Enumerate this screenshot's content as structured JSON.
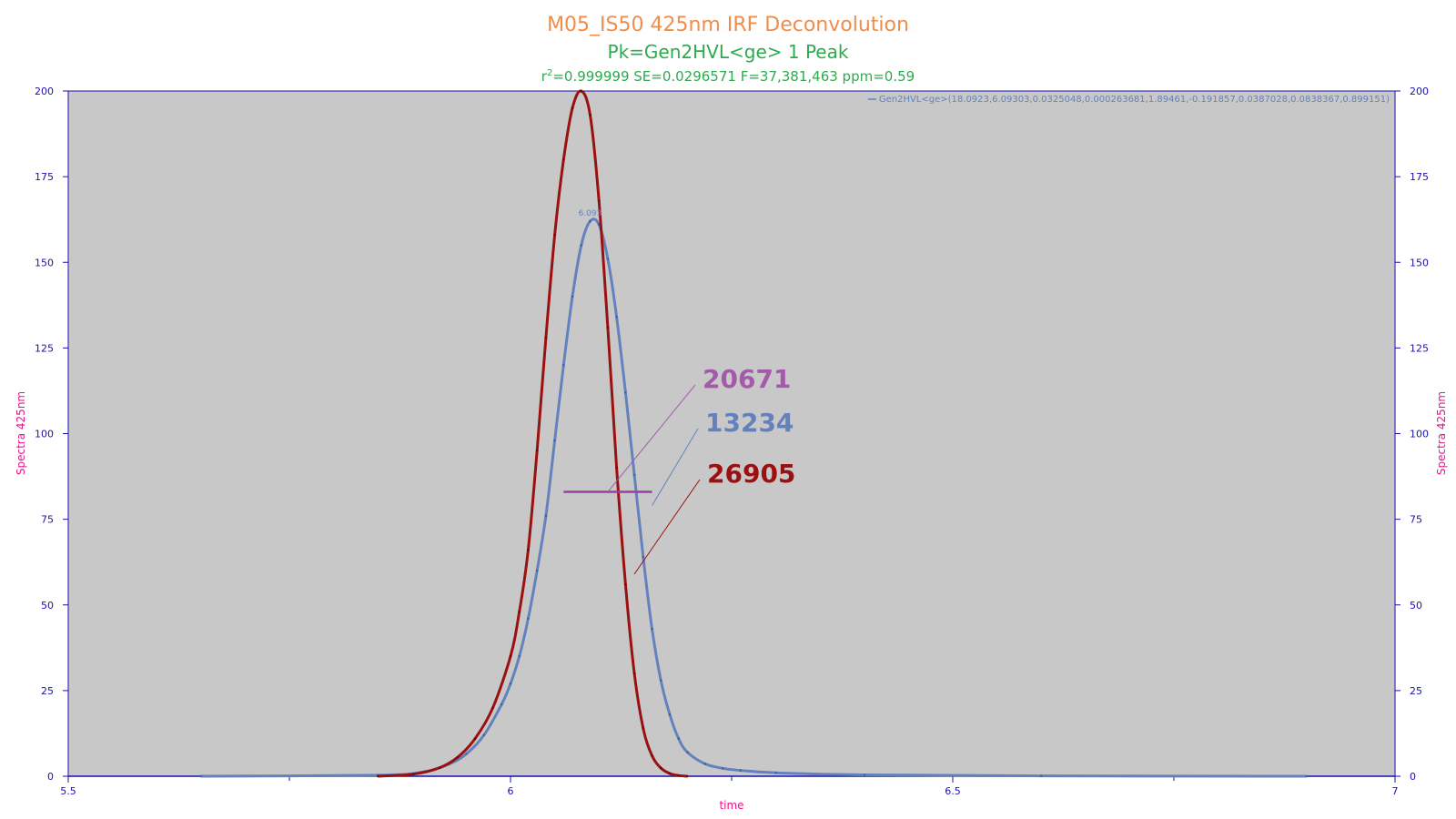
{
  "chart_data": {
    "type": "line",
    "title": "M05_IS50 425nm IRF Deconvolution",
    "subtitle": "Pk=Gen2HVL<ge>  1 Peak",
    "stats": {
      "r2_prefix": "r",
      "r2_sup": "2",
      "r2_rest": "=0.999999  SE=0.0296571  F=37,381,463  ppm=0.59"
    },
    "xlabel": "time",
    "ylabel": "Spectra 425nm",
    "ylabel_right": "Spectra 425nm",
    "xlim": [
      5.5,
      7
    ],
    "ylim": [
      0,
      200
    ],
    "x_ticks": [
      5.5,
      6,
      6.5,
      7
    ],
    "x_tick_labels": [
      "5.5",
      "6",
      "6.5",
      "7"
    ],
    "y_ticks": [
      0,
      25,
      50,
      75,
      100,
      125,
      150,
      175,
      200
    ],
    "y_tick_labels": [
      "0",
      "25",
      "50",
      "75",
      "100",
      "125",
      "150",
      "175",
      "200"
    ],
    "legend": {
      "position": "top-right",
      "entry": "Gen2HVL<ge>(18.0923,6.09303,0.0325048,0.000263681,1.89461,-0.191857,0.0387028,0.0838367,0.899151)"
    },
    "peak_label": "6.093",
    "series": [
      {
        "name": "Gen2HVL<ge>(18.0923,6.09303,0.0325048,0.000263681,1.89461,-0.191857,0.0387028,0.0838367,0.899151)",
        "color": "#6382bd",
        "x": [
          5.65,
          5.85,
          5.9,
          5.93,
          5.95,
          5.97,
          5.99,
          6.0,
          6.01,
          6.02,
          6.03,
          6.04,
          6.05,
          6.06,
          6.07,
          6.08,
          6.09,
          6.1,
          6.11,
          6.12,
          6.13,
          6.14,
          6.15,
          6.16,
          6.17,
          6.18,
          6.19,
          6.2,
          6.22,
          6.24,
          6.26,
          6.3,
          6.4,
          6.6,
          6.9
        ],
        "y": [
          0,
          0.3,
          1.2,
          3.5,
          6.5,
          12,
          21,
          27,
          35,
          46,
          60,
          76,
          98,
          120,
          140,
          155,
          162,
          161,
          151,
          134,
          112,
          88,
          64,
          43,
          28,
          18,
          11,
          7,
          3.6,
          2.3,
          1.7,
          1.0,
          0.4,
          0.1,
          0
        ]
      },
      {
        "name": "IRF",
        "color": "#9b1010",
        "x": [
          5.85,
          5.89,
          5.92,
          5.94,
          5.96,
          5.98,
          6.0,
          6.01,
          6.02,
          6.03,
          6.04,
          6.05,
          6.06,
          6.07,
          6.08,
          6.09,
          6.1,
          6.11,
          6.12,
          6.13,
          6.14,
          6.15,
          6.16,
          6.17,
          6.18,
          6.19,
          6.2
        ],
        "y": [
          0,
          0.6,
          2.5,
          5.5,
          11,
          20,
          35,
          48,
          66,
          95,
          128,
          158,
          180,
          195,
          200,
          193,
          168,
          131,
          90,
          56,
          30,
          14,
          6,
          2.4,
          0.8,
          0.2,
          0
        ]
      }
    ],
    "fwhm": {
      "x_start": 6.06,
      "x_end": 6.16,
      "y": 83,
      "color": "#9a3ea6"
    },
    "annotations": [
      {
        "text": "20671",
        "color": "#a45aaa",
        "target_x": 6.11,
        "target_y": 83
      },
      {
        "text": "13234",
        "color": "#6382bd",
        "target_x": 6.16,
        "target_y": 79
      },
      {
        "text": "26905",
        "color": "#9b1010",
        "target_x": 6.14,
        "target_y": 59
      }
    ],
    "grid": false,
    "colors": {
      "plot_background": "#c8c8c8",
      "axis": "#1a0fb0",
      "title": "#f28c4a",
      "subtitle": "#2eaa4f",
      "axis_title": "#e8158a"
    }
  }
}
